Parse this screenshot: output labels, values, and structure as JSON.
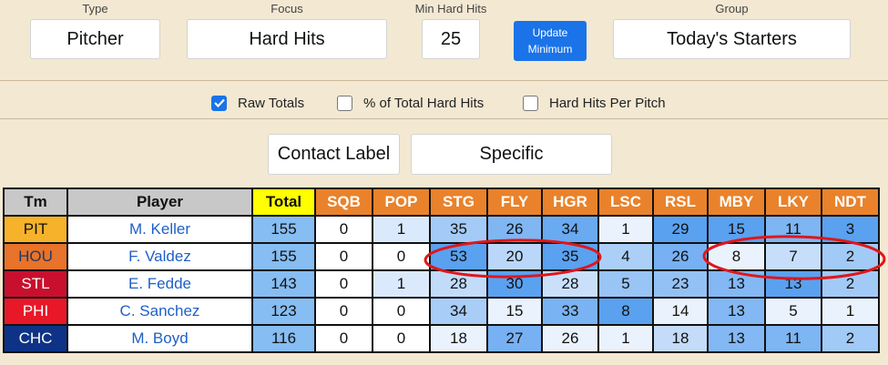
{
  "controls": {
    "type": {
      "label": "Type",
      "value": "Pitcher"
    },
    "focus": {
      "label": "Focus",
      "value": "Hard Hits"
    },
    "min_hard_hits": {
      "label": "Min Hard Hits",
      "value": "25"
    },
    "update_button": {
      "line1": "Update",
      "line2": "Minimum"
    },
    "group": {
      "label": "Group",
      "value": "Today's Starters"
    }
  },
  "options": [
    {
      "label": "Raw Totals",
      "checked": true
    },
    {
      "label": "% of Total Hard Hits",
      "checked": false
    },
    {
      "label": "Hard Hits Per Pitch",
      "checked": false
    }
  ],
  "contact": {
    "label": "Contact Label",
    "value": "Specific"
  },
  "table": {
    "headers": [
      "Tm",
      "Player",
      "Total",
      "SQB",
      "POP",
      "STG",
      "FLY",
      "HGR",
      "LSC",
      "RSL",
      "MBY",
      "LKY",
      "NDT"
    ],
    "rows": [
      {
        "team": "PIT",
        "team_color": "#f6b22a",
        "team_text": "#111111",
        "player": "M. Keller",
        "total": "155",
        "cells": [
          "0",
          "1",
          "35",
          "26",
          "34",
          "1",
          "29",
          "15",
          "11",
          "3"
        ]
      },
      {
        "team": "HOU",
        "team_color": "#e8732a",
        "team_text": "#1f3a66",
        "player": "F. Valdez",
        "total": "155",
        "cells": [
          "0",
          "0",
          "53",
          "20",
          "35",
          "4",
          "26",
          "8",
          "7",
          "2"
        ]
      },
      {
        "team": "STL",
        "team_color": "#c8102e",
        "team_text": "#ffffff",
        "player": "E. Fedde",
        "total": "143",
        "cells": [
          "0",
          "1",
          "28",
          "30",
          "28",
          "5",
          "23",
          "13",
          "13",
          "2"
        ]
      },
      {
        "team": "PHI",
        "team_color": "#e81828",
        "team_text": "#ffffff",
        "player": "C. Sanchez",
        "total": "123",
        "cells": [
          "0",
          "0",
          "34",
          "15",
          "33",
          "8",
          "14",
          "13",
          "5",
          "1"
        ]
      },
      {
        "team": "CHC",
        "team_color": "#0e3386",
        "team_text": "#ffffff",
        "player": "M. Boyd",
        "total": "116",
        "cells": [
          "0",
          "0",
          "18",
          "27",
          "26",
          "1",
          "18",
          "13",
          "11",
          "2"
        ]
      }
    ]
  },
  "annotations": [
    {
      "label": "red-circle-valdez-stg-fly-hgr"
    },
    {
      "label": "red-circle-valdez-mby-lky-ndt"
    }
  ]
}
